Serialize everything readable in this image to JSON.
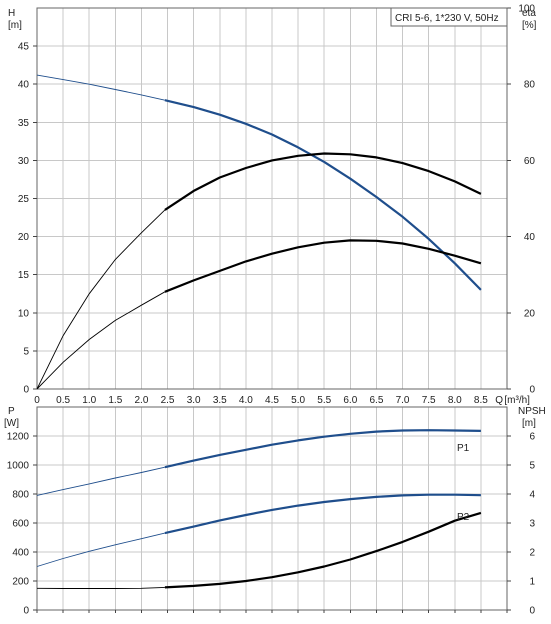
{
  "chart_data": [
    {
      "type": "line",
      "title": "CRI 5-6, 1*230 V, 50Hz",
      "x_label": "Q [m³/h]",
      "x_label_short": "Q",
      "x_unit": "[m³/h]",
      "x_ticks": [
        "0",
        "0.5",
        "1.0",
        "1.5",
        "2.0",
        "2.5",
        "3.0",
        "3.5",
        "4.0",
        "4.5",
        "5.0",
        "5.5",
        "6.0",
        "6.5",
        "7.0",
        "7.5",
        "8.0",
        "8.5"
      ],
      "xlim": [
        0,
        9.0
      ],
      "y_left_label": "H",
      "y_left_unit": "[m]",
      "y_left_ticks": [
        "0",
        "5",
        "10",
        "15",
        "20",
        "25",
        "30",
        "35",
        "40",
        "45"
      ],
      "ylim_left": [
        0,
        50
      ],
      "y_right_label": "eta",
      "y_right_unit": "[%]",
      "y_right_ticks": [
        "0",
        "20",
        "40",
        "60",
        "80",
        "100"
      ],
      "ylim_right": [
        0,
        100
      ],
      "grid": true,
      "series": [
        {
          "axis": "left",
          "color": "#1f4e8c",
          "x": [
            0,
            0.5,
            1.0,
            1.5,
            2.0,
            2.45,
            3.0,
            3.5,
            4.0,
            4.5,
            5.0,
            5.5,
            6.0,
            6.5,
            7.0,
            7.5,
            8.0,
            8.5,
            8.5
          ],
          "y": [
            41.2,
            40.6,
            40.0,
            39.3,
            38.6,
            37.9,
            37.0,
            36.0,
            34.8,
            33.4,
            31.7,
            29.8,
            27.6,
            25.2,
            22.6,
            19.7,
            16.5,
            13.0,
            13.0
          ]
        },
        {
          "axis": "right",
          "color": "#000000",
          "x": [
            0,
            0.5,
            1.0,
            1.5,
            2.0,
            2.45,
            3.0,
            3.5,
            4.0,
            4.5,
            5.0,
            5.5,
            6.0,
            6.5,
            7.0,
            7.5,
            8.0,
            8.5
          ],
          "y": [
            0,
            14,
            25,
            34,
            41,
            47,
            52,
            55.5,
            58,
            60,
            61.2,
            61.8,
            61.6,
            60.8,
            59.3,
            57.2,
            54.5,
            51.2
          ]
        },
        {
          "axis": "right",
          "color": "#000000",
          "x": [
            0,
            0.5,
            1.0,
            1.5,
            2.0,
            2.45,
            3.0,
            3.5,
            4.0,
            4.5,
            5.0,
            5.5,
            6.0,
            6.5,
            7.0,
            7.5,
            8.0,
            8.5
          ],
          "y": [
            0,
            7,
            13,
            18,
            22,
            25.5,
            28.5,
            31,
            33.5,
            35.5,
            37.2,
            38.4,
            39.0,
            38.9,
            38.2,
            36.8,
            35.0,
            33.0
          ]
        }
      ]
    },
    {
      "type": "line",
      "x_label": "Q [m³/h]",
      "x_ticks": [],
      "xlim": [
        0,
        9.0
      ],
      "y_left_label": "P",
      "y_left_unit": "[W]",
      "y_left_ticks": [
        "0",
        "200",
        "400",
        "600",
        "800",
        "1000",
        "1200"
      ],
      "ylim_left": [
        0,
        1400
      ],
      "y_right_label": "NPSH",
      "y_right_unit": "[m]",
      "y_right_ticks": [
        "0",
        "1",
        "2",
        "3",
        "4",
        "5",
        "6"
      ],
      "ylim_right": [
        0,
        7
      ],
      "grid": true,
      "series": [
        {
          "name": "P1",
          "axis": "left",
          "color": "#1f4e8c",
          "x": [
            0,
            0.5,
            1.0,
            1.5,
            2.0,
            2.45,
            3.0,
            3.5,
            4.0,
            4.5,
            5.0,
            5.5,
            6.0,
            6.5,
            7.0,
            7.5,
            8.0,
            8.5
          ],
          "y": [
            790,
            830,
            870,
            910,
            948,
            985,
            1030,
            1070,
            1105,
            1140,
            1170,
            1195,
            1215,
            1230,
            1238,
            1240,
            1238,
            1235
          ]
        },
        {
          "name": "P2",
          "axis": "left",
          "color": "#1f4e8c",
          "x": [
            0,
            0.5,
            1.0,
            1.5,
            2.0,
            2.45,
            3.0,
            3.5,
            4.0,
            4.5,
            5.0,
            5.5,
            6.0,
            6.5,
            7.0,
            7.5,
            8.0,
            8.5
          ],
          "y": [
            300,
            355,
            405,
            450,
            492,
            530,
            575,
            618,
            655,
            690,
            720,
            745,
            765,
            780,
            790,
            795,
            795,
            792
          ]
        },
        {
          "axis": "right",
          "color": "#000000",
          "x": [
            0,
            0.5,
            1.0,
            1.5,
            2.0,
            2.45,
            3.0,
            3.5,
            4.0,
            4.5,
            5.0,
            5.5,
            6.0,
            6.5,
            7.0,
            7.5,
            8.0,
            8.5
          ],
          "y": [
            0.75,
            0.74,
            0.74,
            0.74,
            0.75,
            0.78,
            0.83,
            0.9,
            1.0,
            1.13,
            1.3,
            1.5,
            1.74,
            2.03,
            2.35,
            2.7,
            3.08,
            3.35
          ]
        }
      ]
    }
  ]
}
